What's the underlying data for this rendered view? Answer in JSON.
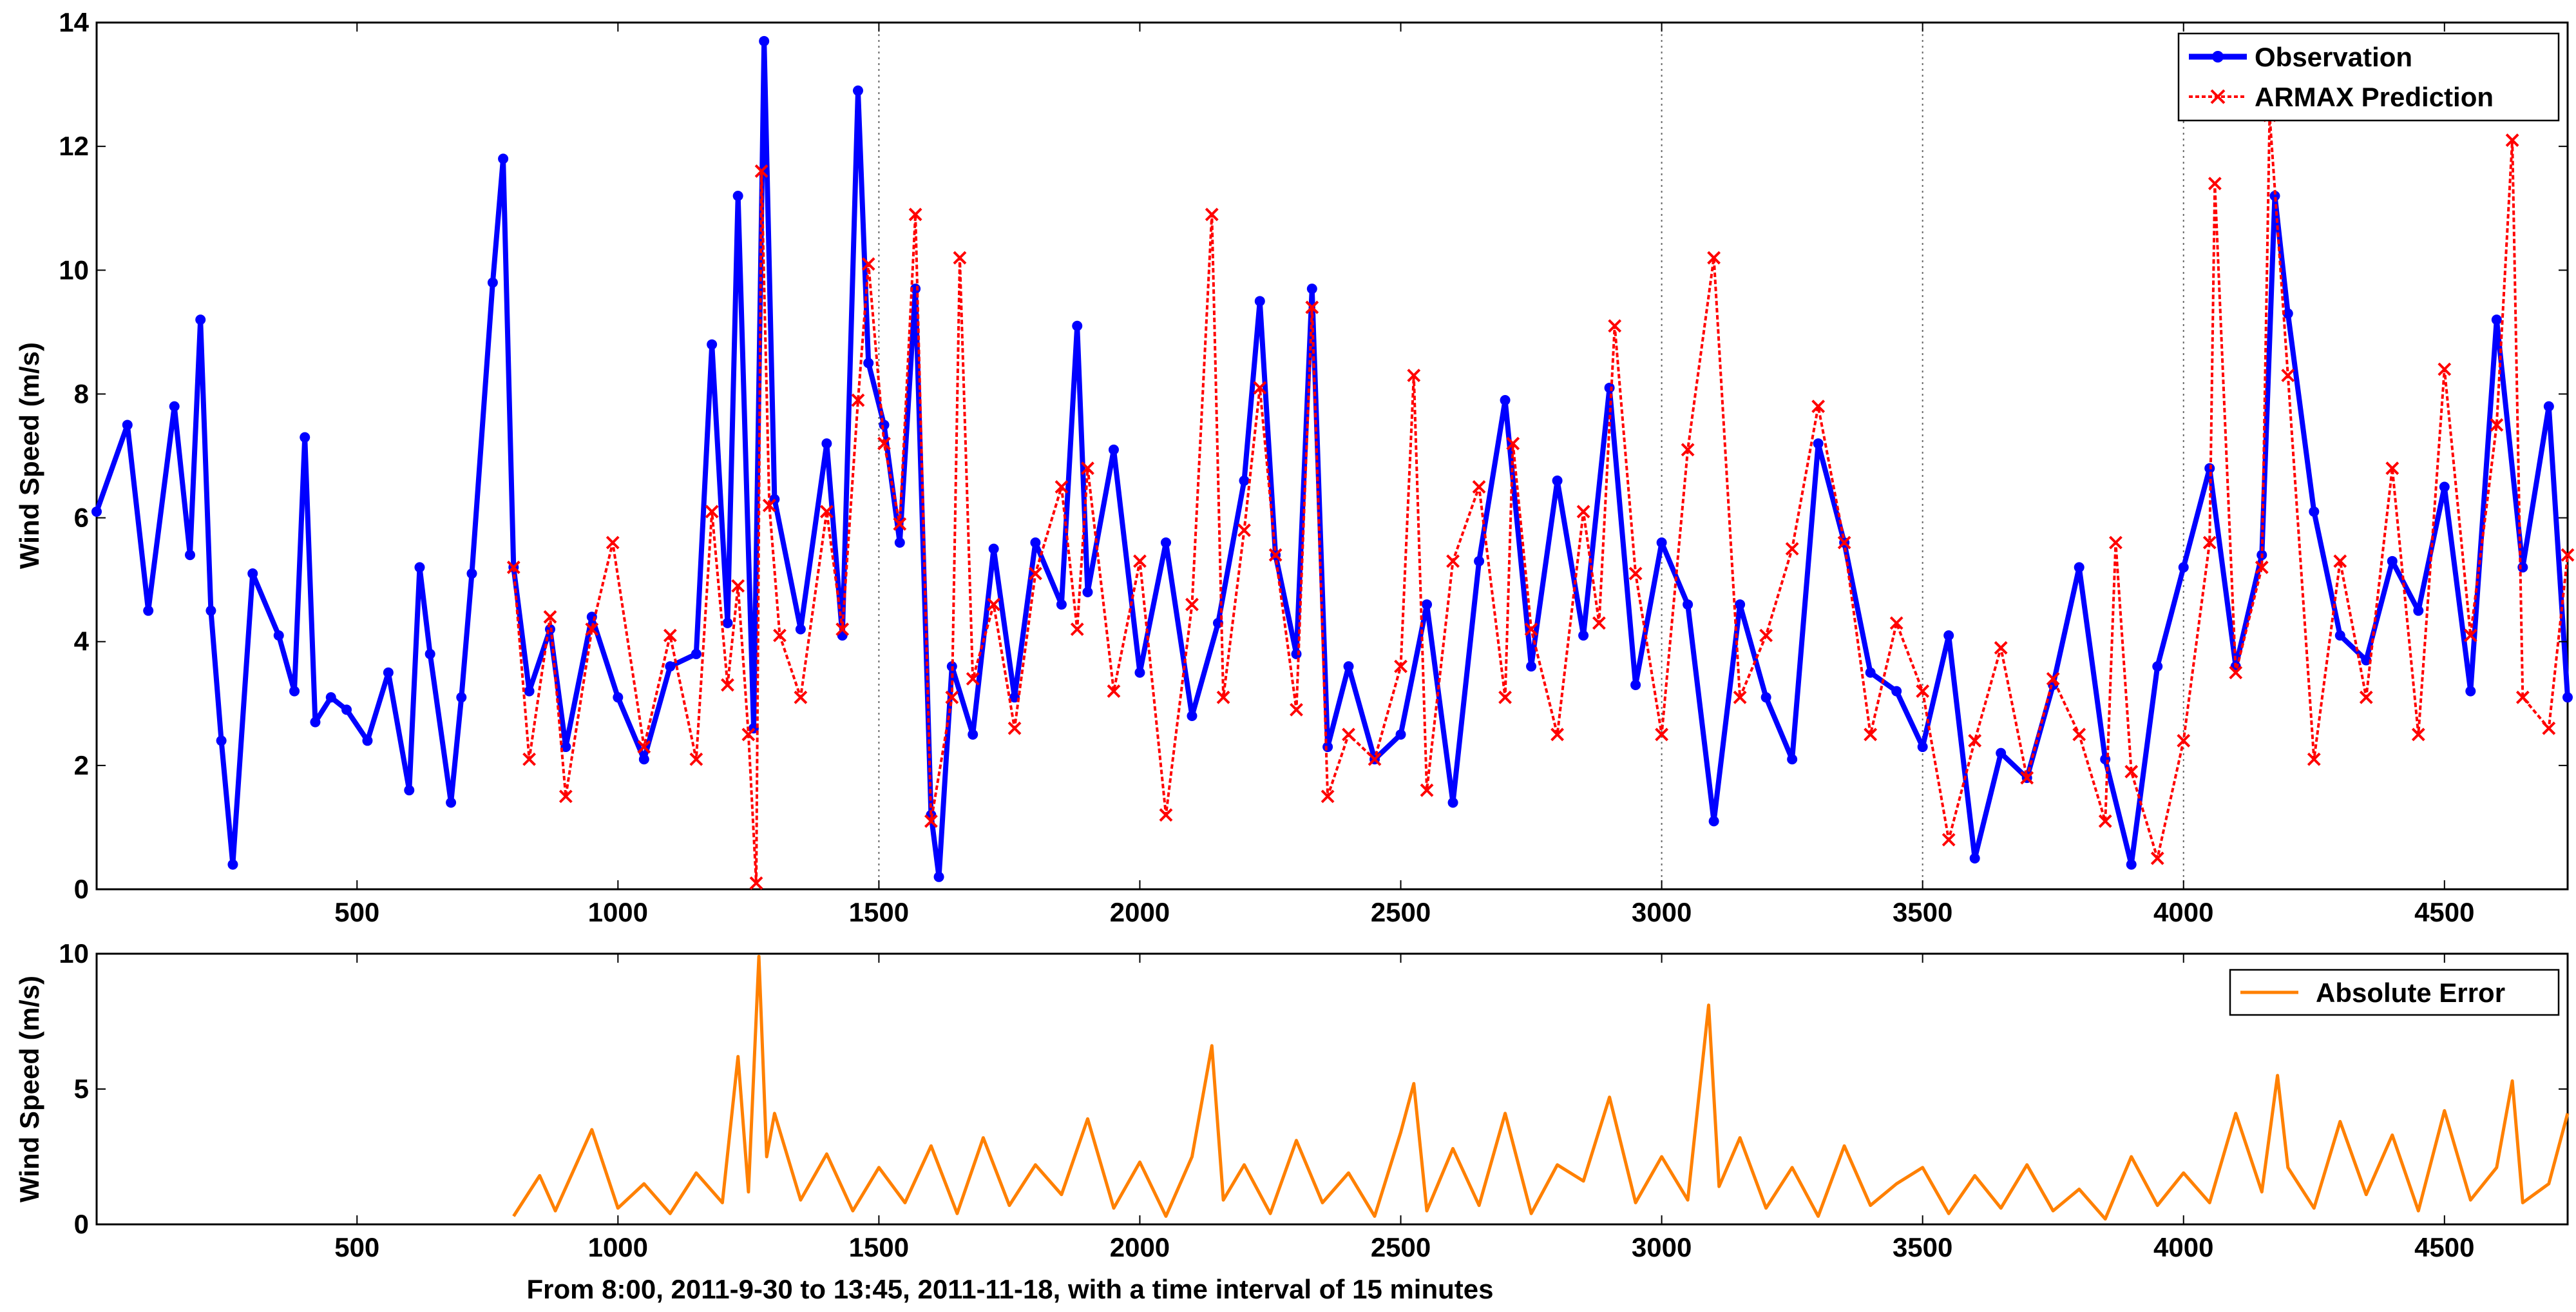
{
  "chart_data": [
    {
      "type": "line",
      "ylabel": "Wind Speed (m/s)",
      "xlim": [
        1,
        4736
      ],
      "ylim": [
        0,
        14
      ],
      "xticks": [
        500,
        1000,
        1500,
        2000,
        2500,
        3000,
        3500,
        4000,
        4500
      ],
      "yticks": [
        0,
        2,
        4,
        6,
        8,
        10,
        12,
        14
      ],
      "vgrid": [
        1500,
        3000,
        3500,
        4000
      ],
      "legend_position": "top-right",
      "series": [
        {
          "name": "Observation",
          "color": "#0000ff",
          "marker": "circle",
          "x": [
            1,
            60,
            100,
            150,
            180,
            200,
            220,
            240,
            262,
            300,
            350,
            380,
            400,
            420,
            450,
            480,
            520,
            560,
            600,
            620,
            640,
            680,
            700,
            720,
            760,
            780,
            800,
            830,
            870,
            900,
            950,
            1000,
            1050,
            1100,
            1150,
            1180,
            1210,
            1230,
            1260,
            1280,
            1300,
            1350,
            1400,
            1430,
            1460,
            1480,
            1510,
            1540,
            1570,
            1600,
            1615,
            1640,
            1680,
            1720,
            1760,
            1800,
            1850,
            1880,
            1900,
            1950,
            2000,
            2050,
            2100,
            2150,
            2200,
            2230,
            2260,
            2300,
            2330,
            2360,
            2400,
            2450,
            2500,
            2550,
            2600,
            2650,
            2700,
            2750,
            2800,
            2850,
            2900,
            2950,
            3000,
            3050,
            3100,
            3150,
            3200,
            3250,
            3300,
            3350,
            3400,
            3450,
            3500,
            3550,
            3600,
            3650,
            3700,
            3750,
            3800,
            3850,
            3900,
            3950,
            4000,
            4050,
            4100,
            4150,
            4175,
            4200,
            4250,
            4300,
            4350,
            4400,
            4450,
            4500,
            4550,
            4600,
            4650,
            4700,
            4736
          ],
          "y": [
            6.1,
            7.5,
            4.5,
            7.8,
            5.4,
            9.2,
            4.5,
            2.4,
            0.4,
            5.1,
            4.1,
            3.2,
            7.3,
            2.7,
            3.1,
            2.9,
            2.4,
            3.5,
            1.6,
            5.2,
            3.8,
            1.4,
            3.1,
            5.1,
            9.8,
            11.8,
            5.2,
            3.2,
            4.2,
            2.3,
            4.4,
            3.1,
            2.1,
            3.6,
            3.8,
            8.8,
            4.3,
            11.2,
            2.6,
            13.7,
            6.3,
            4.2,
            7.2,
            4.1,
            12.9,
            8.5,
            7.5,
            5.6,
            9.7,
            1.2,
            0.2,
            3.6,
            2.5,
            5.5,
            3.1,
            5.6,
            4.6,
            9.1,
            4.8,
            7.1,
            3.5,
            5.6,
            2.8,
            4.3,
            6.6,
            9.5,
            5.4,
            3.8,
            9.7,
            2.3,
            3.6,
            2.1,
            2.5,
            4.6,
            1.4,
            5.3,
            7.9,
            3.6,
            6.6,
            4.1,
            8.1,
            3.3,
            5.6,
            4.6,
            1.1,
            4.6,
            3.1,
            2.1,
            7.2,
            5.6,
            3.5,
            3.2,
            2.3,
            4.1,
            0.5,
            2.2,
            1.8,
            3.3,
            5.2,
            2.1,
            0.4,
            3.6,
            5.2,
            6.8,
            3.6,
            5.4,
            11.2,
            9.3,
            6.1,
            4.1,
            3.7,
            5.3,
            4.5,
            6.5,
            3.2,
            9.2,
            5.2,
            7.8,
            3.1
          ]
        },
        {
          "name": "ARMAX Prediction",
          "color": "#ff0000",
          "marker": "x",
          "x": [
            800,
            830,
            870,
            900,
            950,
            990,
            1050,
            1100,
            1150,
            1180,
            1210,
            1230,
            1250,
            1265,
            1275,
            1290,
            1310,
            1350,
            1400,
            1430,
            1460,
            1480,
            1510,
            1540,
            1570,
            1600,
            1640,
            1655,
            1680,
            1720,
            1760,
            1800,
            1850,
            1880,
            1900,
            1950,
            2000,
            2050,
            2100,
            2138,
            2160,
            2200,
            2230,
            2260,
            2300,
            2330,
            2360,
            2400,
            2450,
            2500,
            2525,
            2550,
            2600,
            2650,
            2700,
            2715,
            2750,
            2800,
            2850,
            2880,
            2910,
            2950,
            3000,
            3050,
            3100,
            3150,
            3200,
            3250,
            3300,
            3350,
            3400,
            3450,
            3500,
            3550,
            3600,
            3650,
            3700,
            3750,
            3800,
            3850,
            3870,
            3900,
            3950,
            4000,
            4050,
            4060,
            4100,
            4150,
            4165,
            4200,
            4250,
            4300,
            4350,
            4400,
            4450,
            4500,
            4550,
            4600,
            4630,
            4650,
            4700,
            4736
          ],
          "y": [
            5.2,
            2.1,
            4.4,
            1.5,
            4.2,
            5.6,
            2.3,
            4.1,
            2.1,
            6.1,
            3.3,
            4.9,
            2.5,
            0.1,
            11.6,
            6.2,
            4.1,
            3.1,
            6.1,
            4.2,
            7.9,
            10.1,
            7.2,
            5.9,
            10.9,
            1.1,
            3.1,
            10.2,
            3.4,
            4.6,
            2.6,
            5.1,
            6.5,
            4.2,
            6.8,
            3.2,
            5.3,
            1.2,
            4.6,
            10.9,
            3.1,
            5.8,
            8.1,
            5.4,
            2.9,
            9.4,
            1.5,
            2.5,
            2.1,
            3.6,
            8.3,
            1.6,
            5.3,
            6.5,
            3.1,
            7.2,
            4.2,
            2.5,
            6.1,
            4.3,
            9.1,
            5.1,
            2.5,
            7.1,
            10.2,
            3.1,
            4.1,
            5.5,
            7.8,
            5.6,
            2.5,
            4.3,
            3.2,
            0.8,
            2.4,
            3.9,
            1.8,
            3.4,
            2.5,
            1.1,
            5.6,
            1.9,
            0.5,
            2.4,
            5.6,
            11.4,
            3.5,
            5.2,
            12.5,
            8.3,
            2.1,
            5.3,
            3.1,
            6.8,
            2.5,
            8.4,
            4.1,
            7.5,
            12.1,
            3.1,
            2.6,
            5.4
          ]
        }
      ]
    },
    {
      "type": "line",
      "ylabel": "Wind Speed (m/s)",
      "xlabel": "From 8:00, 2011-9-30 to 13:45, 2011-11-18, with a time interval of 15 minutes",
      "xlim": [
        1,
        4736
      ],
      "ylim": [
        0,
        10
      ],
      "xticks": [
        500,
        1000,
        1500,
        2000,
        2500,
        3000,
        3500,
        4000,
        4500
      ],
      "yticks": [
        0,
        5,
        10
      ],
      "legend_position": "top-right",
      "series": [
        {
          "name": "Absolute Error",
          "color": "#ff8000",
          "x": [
            800,
            850,
            880,
            950,
            1000,
            1050,
            1100,
            1150,
            1200,
            1230,
            1250,
            1270,
            1285,
            1300,
            1350,
            1400,
            1450,
            1500,
            1550,
            1600,
            1650,
            1700,
            1750,
            1800,
            1850,
            1900,
            1950,
            2000,
            2050,
            2100,
            2138,
            2160,
            2200,
            2250,
            2300,
            2350,
            2400,
            2450,
            2500,
            2525,
            2550,
            2600,
            2650,
            2700,
            2750,
            2800,
            2850,
            2900,
            2950,
            3000,
            3050,
            3090,
            3110,
            3150,
            3200,
            3250,
            3300,
            3350,
            3400,
            3450,
            3500,
            3550,
            3600,
            3650,
            3700,
            3750,
            3800,
            3850,
            3900,
            3950,
            4000,
            4050,
            4100,
            4150,
            4180,
            4200,
            4250,
            4300,
            4350,
            4400,
            4450,
            4500,
            4550,
            4600,
            4630,
            4650,
            4700,
            4736
          ],
          "y": [
            0.3,
            1.8,
            0.5,
            3.5,
            0.6,
            1.5,
            0.4,
            1.9,
            0.8,
            6.2,
            1.2,
            9.9,
            2.5,
            4.1,
            0.9,
            2.6,
            0.5,
            2.1,
            0.8,
            2.9,
            0.4,
            3.2,
            0.7,
            2.2,
            1.1,
            3.9,
            0.6,
            2.3,
            0.3,
            2.5,
            6.6,
            0.9,
            2.2,
            0.4,
            3.1,
            0.8,
            1.9,
            0.3,
            3.4,
            5.2,
            0.5,
            2.8,
            0.7,
            4.1,
            0.4,
            2.2,
            1.6,
            4.7,
            0.8,
            2.5,
            0.9,
            8.1,
            1.4,
            3.2,
            0.6,
            2.1,
            0.3,
            2.9,
            0.7,
            1.5,
            2.1,
            0.4,
            1.8,
            0.6,
            2.2,
            0.5,
            1.3,
            0.2,
            2.5,
            0.7,
            1.9,
            0.8,
            4.1,
            1.2,
            5.5,
            2.1,
            0.6,
            3.8,
            1.1,
            3.3,
            0.5,
            4.2,
            0.9,
            2.1,
            5.3,
            0.8,
            1.5,
            4.1
          ]
        }
      ]
    }
  ]
}
